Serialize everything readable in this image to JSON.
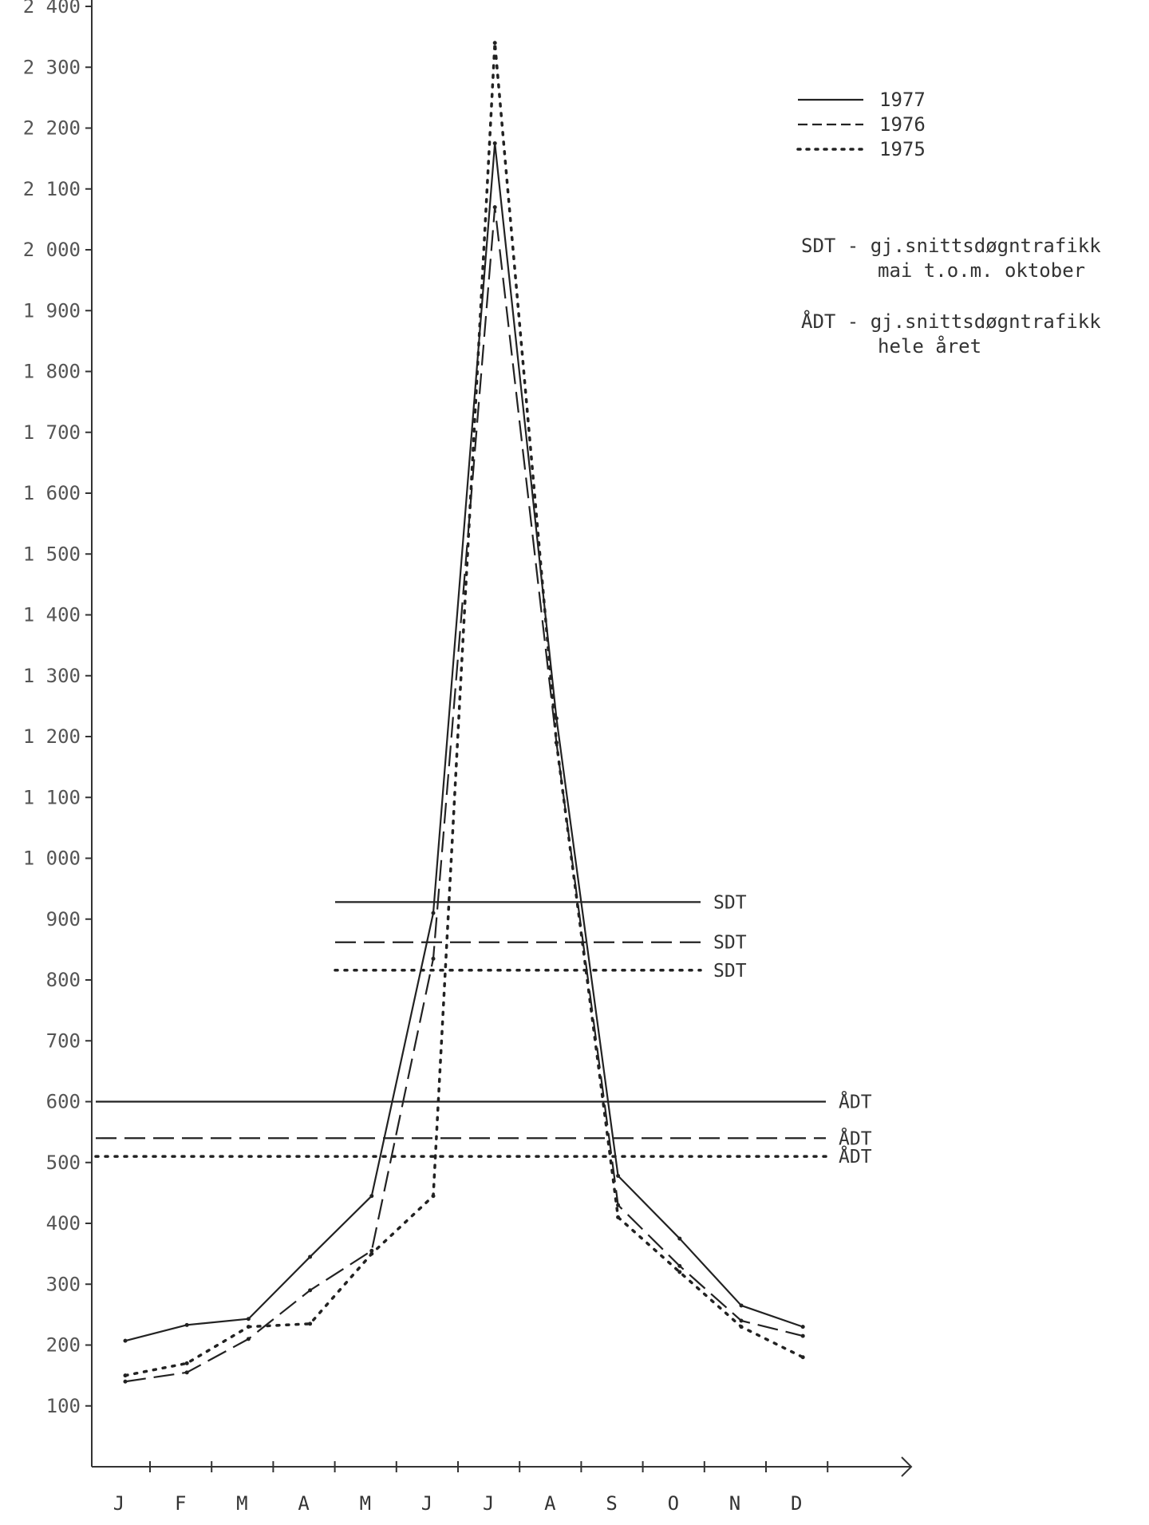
{
  "chart_data": {
    "type": "line",
    "categories": [
      "J",
      "F",
      "M",
      "A",
      "M",
      "J",
      "J",
      "A",
      "S",
      "O",
      "N",
      "D"
    ],
    "ylim": [
      0,
      2400
    ],
    "y_ticks": [
      {
        "value": 100,
        "label": "100"
      },
      {
        "value": 200,
        "label": "200"
      },
      {
        "value": 300,
        "label": "300"
      },
      {
        "value": 400,
        "label": "400"
      },
      {
        "value": 500,
        "label": "500"
      },
      {
        "value": 600,
        "label": "600"
      },
      {
        "value": 700,
        "label": "700"
      },
      {
        "value": 800,
        "label": "800"
      },
      {
        "value": 900,
        "label": "900"
      },
      {
        "value": 1000,
        "label": "1 000"
      },
      {
        "value": 1100,
        "label": "1 100"
      },
      {
        "value": 1200,
        "label": "1 200"
      },
      {
        "value": 1300,
        "label": "1 300"
      },
      {
        "value": 1400,
        "label": "1 400"
      },
      {
        "value": 1500,
        "label": "1 500"
      },
      {
        "value": 1600,
        "label": "1 600"
      },
      {
        "value": 1700,
        "label": "1 700"
      },
      {
        "value": 1800,
        "label": "1 800"
      },
      {
        "value": 1900,
        "label": "1 900"
      },
      {
        "value": 2000,
        "label": "2 000"
      },
      {
        "value": 2100,
        "label": "2 100"
      },
      {
        "value": 2200,
        "label": "2 200"
      },
      {
        "value": 2300,
        "label": "2 300"
      },
      {
        "value": 2400,
        "label": "2 400"
      }
    ],
    "series": [
      {
        "name": "1977",
        "style": "solid",
        "values": [
          207,
          233,
          243,
          345,
          445,
          910,
          2175,
          1230,
          478,
          375,
          265,
          230
        ]
      },
      {
        "name": "1976",
        "style": "dashed",
        "values": [
          140,
          155,
          210,
          290,
          355,
          835,
          2070,
          1190,
          430,
          330,
          240,
          215
        ]
      },
      {
        "name": "1975",
        "style": "dotted",
        "values": [
          150,
          170,
          230,
          235,
          350,
          445,
          2340,
          1190,
          410,
          320,
          230,
          180
        ]
      }
    ],
    "reference_lines": [
      {
        "label": "SDT",
        "style": "solid",
        "value": 928,
        "span": "may-oct"
      },
      {
        "label": "SDT",
        "style": "dashed",
        "value": 862,
        "span": "may-oct"
      },
      {
        "label": "SDT",
        "style": "dotted",
        "value": 816,
        "span": "may-oct"
      },
      {
        "label": "ÅDT",
        "style": "solid",
        "value": 600,
        "span": "year"
      },
      {
        "label": "ÅDT",
        "style": "dashed",
        "value": 540,
        "span": "year"
      },
      {
        "label": "ÅDT",
        "style": "dotted",
        "value": 510,
        "span": "year"
      }
    ],
    "legend": {
      "placement": "top-right",
      "entries": [
        {
          "label": "1977",
          "style": "solid"
        },
        {
          "label": "1976",
          "style": "dashed"
        },
        {
          "label": "1975",
          "style": "dotted"
        }
      ],
      "notes": [
        {
          "abbr": "SDT",
          "line1": "SDT - gj.snittsdøgntrafikk",
          "line2": "mai t.o.m. oktober"
        },
        {
          "abbr": "ÅDT",
          "line1": "ÅDT - gj.snittsdøgntrafikk",
          "line2": "hele året"
        }
      ]
    }
  }
}
